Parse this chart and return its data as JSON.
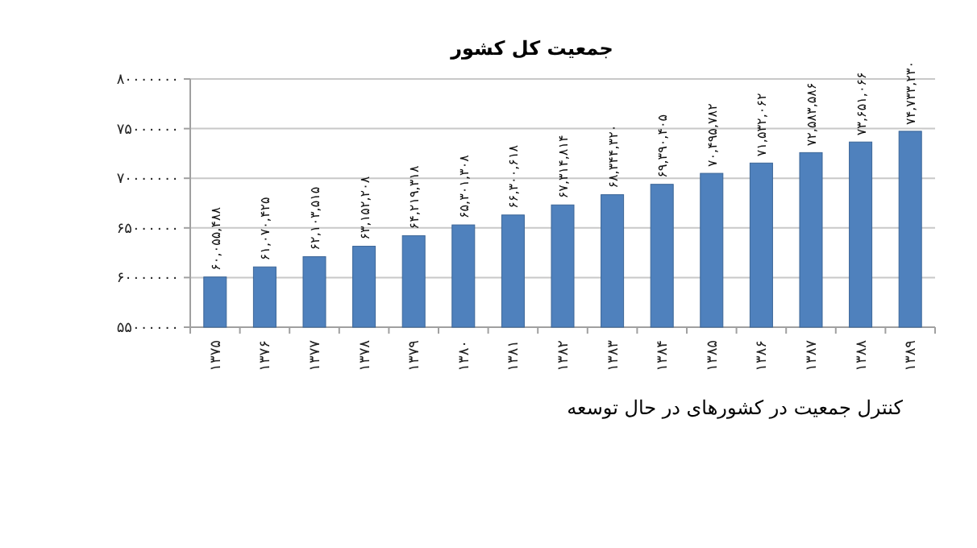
{
  "chart_data": {
    "type": "bar",
    "title": "جمعیت کل کشور",
    "categories": [
      "۱۳۷۵",
      "۱۳۷۶",
      "۱۳۷۷",
      "۱۳۷۸",
      "۱۳۷۹",
      "۱۳۸۰",
      "۱۳۸۱",
      "۱۳۸۲",
      "۱۳۸۳",
      "۱۳۸۴",
      "۱۳۸۵",
      "۱۳۸۶",
      "۱۳۸۷",
      "۱۳۸۸",
      "۱۳۸۹"
    ],
    "values": [
      60055488,
      61070425,
      62103515,
      63152208,
      64219318,
      65301308,
      66300618,
      67314814,
      68344320,
      69390405,
      70495782,
      71532062,
      72583586,
      73651066,
      74733230
    ],
    "value_labels": [
      "۶۰,۰۵۵,۴۸۸",
      "۶۱,۰۷۰,۴۲۵",
      "۶۲,۱۰۳,۵۱۵",
      "۶۳,۱۵۲,۲۰۸",
      "۶۴,۲۱۹,۳۱۸",
      "۶۵,۳۰۱,۳۰۸",
      "۶۶,۳۰۰,۶۱۸",
      "۶۷,۳۱۴,۸۱۴",
      "۶۸,۳۴۴,۳۲۰",
      "۶۹,۳۹۰,۴۰۵",
      "۷۰,۴۹۵,۷۸۲",
      "۷۱,۵۳۲,۰۶۲",
      "۷۲,۵۸۳,۵۸۶",
      "۷۳,۶۵۱,۰۶۶",
      "۷۴,۷۳۳,۲۳۰"
    ],
    "color": "#4f81bd",
    "ylim": [
      55000000,
      80000000
    ],
    "yticks": [
      {
        "value": 55000000,
        "label": "۵۵۰۰۰۰۰۰"
      },
      {
        "value": 60000000,
        "label": "۶۰۰۰۰۰۰۰"
      },
      {
        "value": 65000000,
        "label": "۶۵۰۰۰۰۰۰"
      },
      {
        "value": 70000000,
        "label": "۷۰۰۰۰۰۰۰"
      },
      {
        "value": 75000000,
        "label": "۷۵۰۰۰۰۰۰"
      },
      {
        "value": 80000000,
        "label": "۸۰۰۰۰۰۰۰"
      }
    ],
    "grid": "y",
    "annotations": [
      "کنترل جمعیت در کشورهای در حال توسعه"
    ]
  }
}
